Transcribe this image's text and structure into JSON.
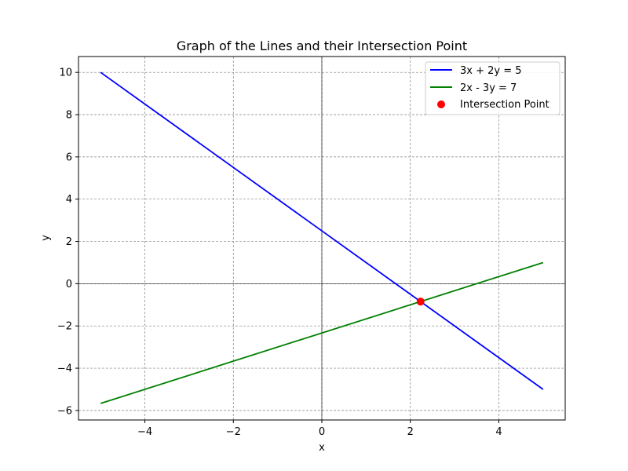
{
  "chart_data": {
    "type": "line",
    "title": "Graph of the Lines and their Intersection Point",
    "xlabel": "x",
    "ylabel": "y",
    "xlim": [
      -5.5,
      5.5
    ],
    "ylim": [
      -6.45,
      10.75
    ],
    "xticks": [
      -4,
      -2,
      0,
      2,
      4
    ],
    "yticks": [
      -6,
      -4,
      -2,
      0,
      2,
      4,
      6,
      8,
      10
    ],
    "grid": true,
    "legend_position": "upper right",
    "series": [
      {
        "name": "3x + 2y = 5",
        "color": "#0000ff",
        "kind": "line",
        "x": [
          -5,
          5
        ],
        "y": [
          10,
          -5
        ]
      },
      {
        "name": "2x - 3y = 7",
        "color": "#008000",
        "kind": "line",
        "x": [
          -5,
          5
        ],
        "y": [
          -5.667,
          1
        ]
      },
      {
        "name": "Intersection Point",
        "color": "#ff0000",
        "kind": "scatter",
        "x": [
          2.2308
        ],
        "y": [
          -0.8462
        ]
      }
    ]
  }
}
